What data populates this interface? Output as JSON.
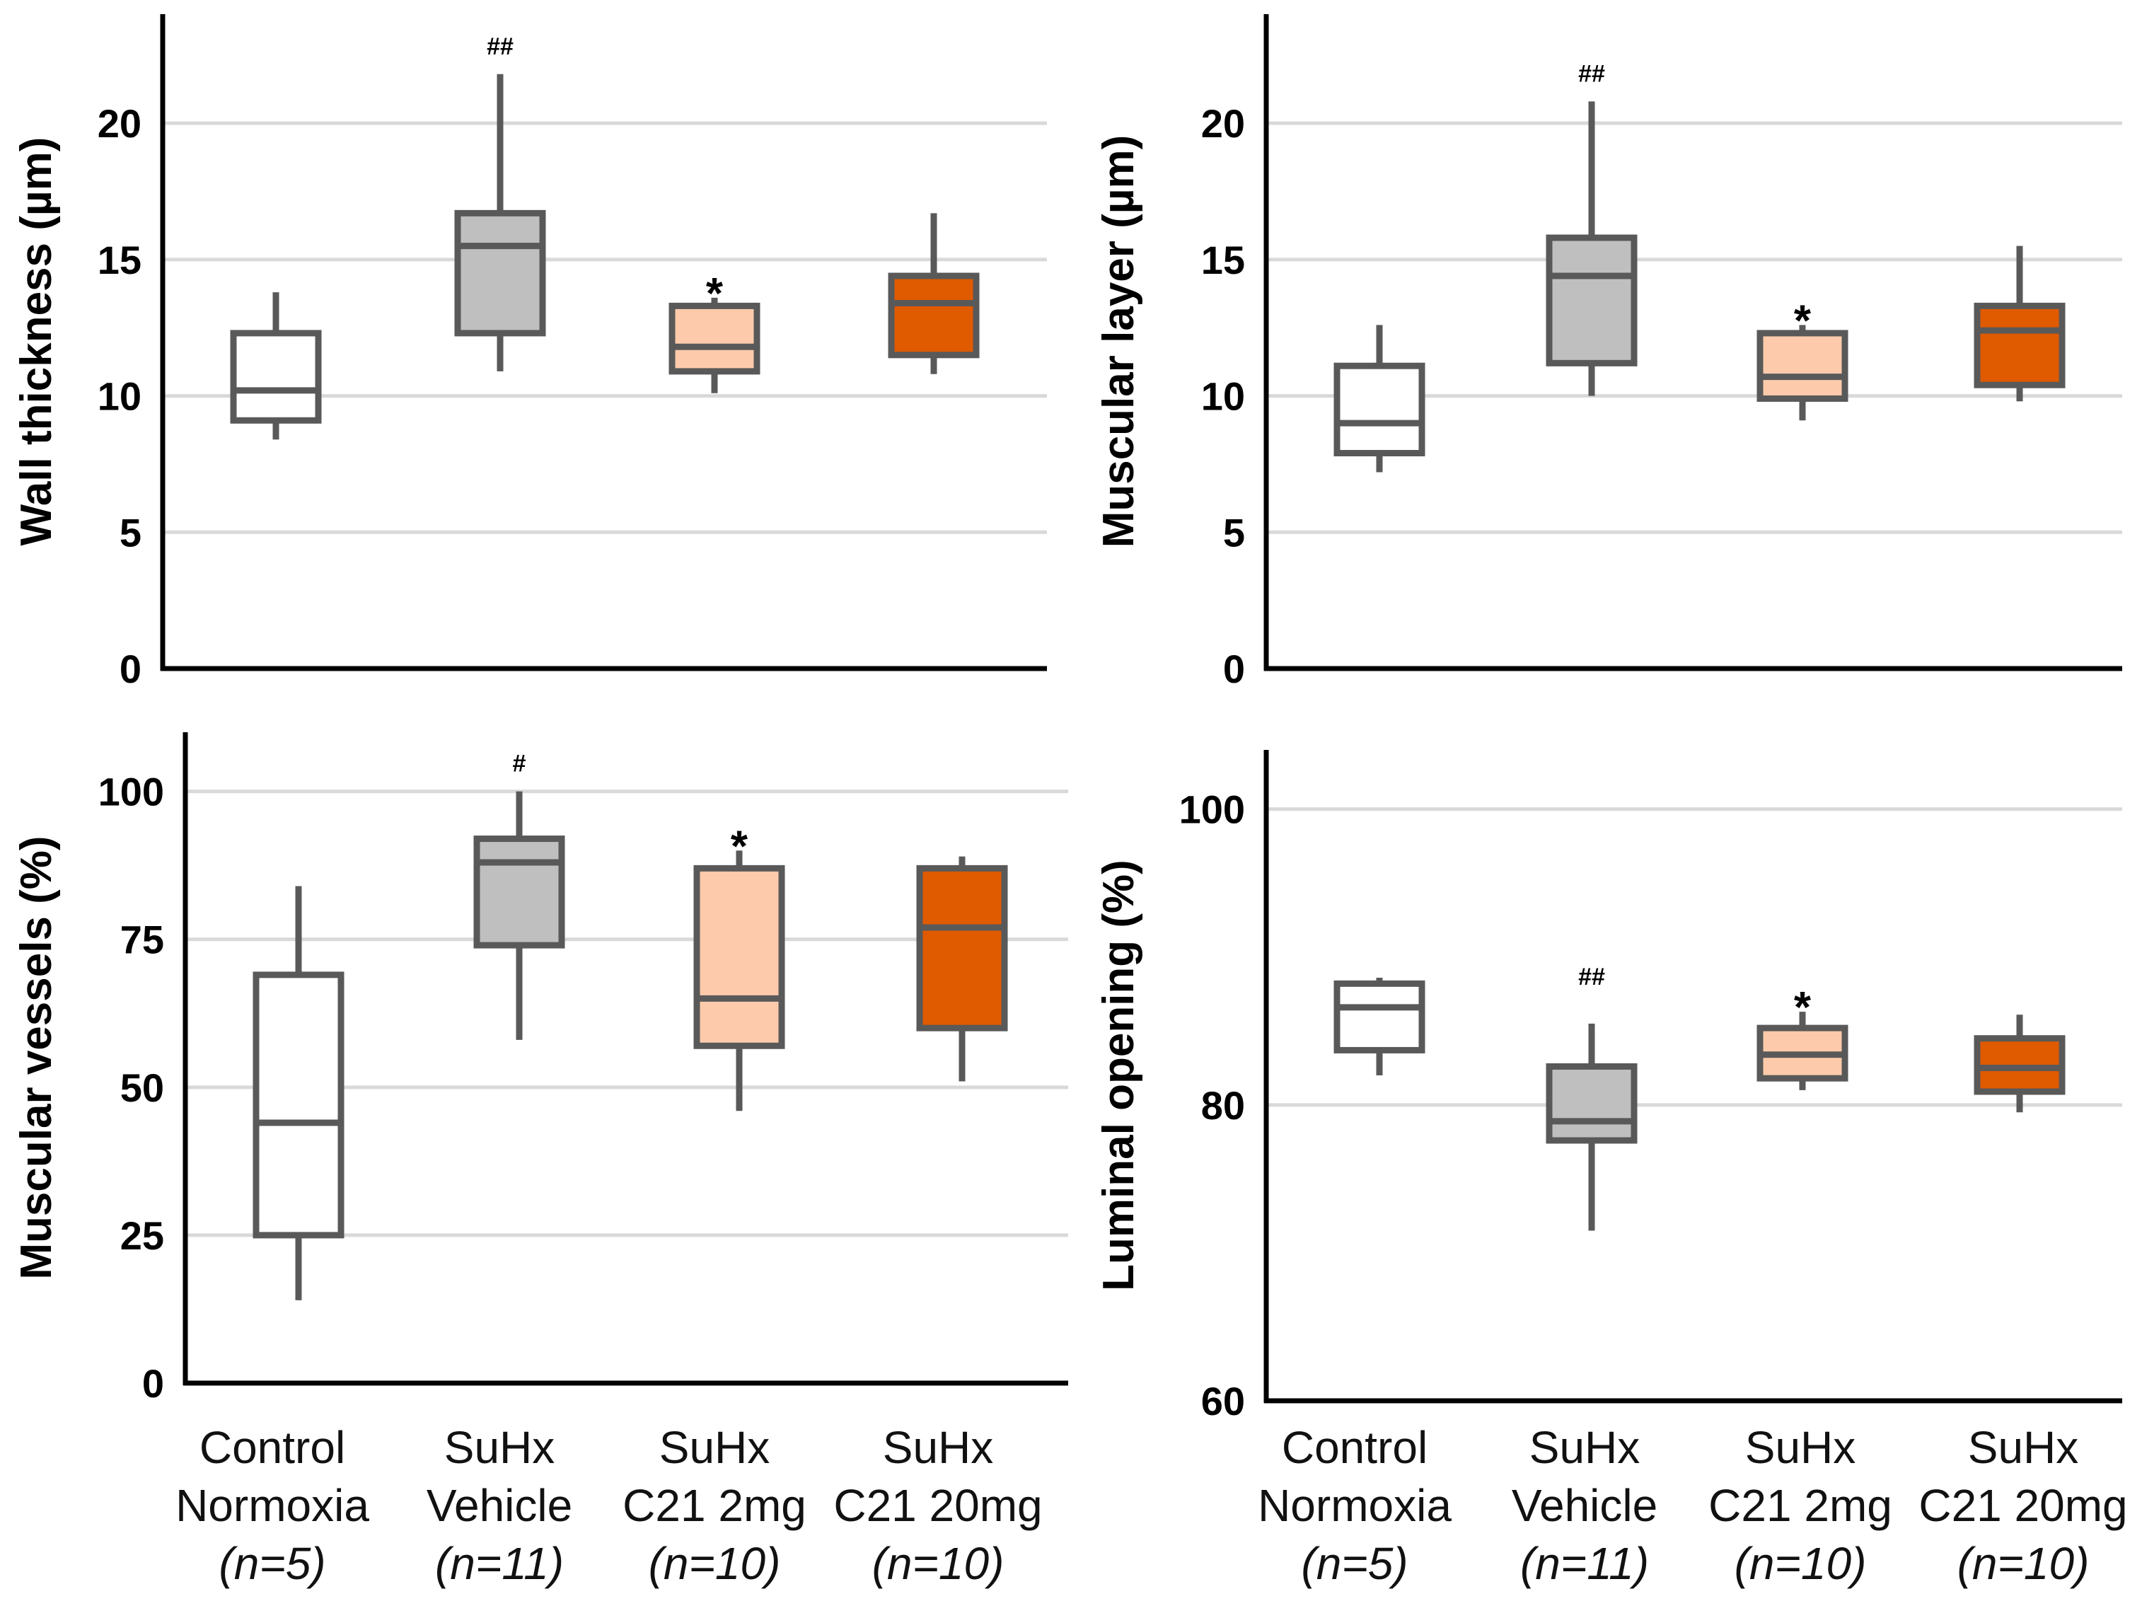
{
  "colors": {
    "stroke": "#595959",
    "grid": "#d9d9d9",
    "axis": "#000000",
    "control": "#ffffff",
    "vehicle": "#bfbfbf",
    "c21_2mg": "#fdcbab",
    "c21_20mg": "#e05a00"
  },
  "categories": [
    {
      "line1": "Control",
      "line2": "Normoxia",
      "n": "(n=5)"
    },
    {
      "line1": "SuHx",
      "line2": "Vehicle",
      "n": "(n=11)"
    },
    {
      "line1": "SuHx",
      "line2": "C21 2mg",
      "n": "(n=10)"
    },
    {
      "line1": "SuHx",
      "line2": "C21 20mg",
      "n": "(n=10)"
    }
  ],
  "chart_data": [
    {
      "type": "boxplot",
      "ylabel": "Wall thickness (µm)",
      "ylim": [
        0,
        24
      ],
      "yticks": [
        0,
        5,
        10,
        15,
        20
      ],
      "boxes": [
        {
          "min": 8.4,
          "q1": 9.1,
          "median": 10.2,
          "q3": 12.3,
          "max": 13.8,
          "sig": ""
        },
        {
          "min": 10.9,
          "q1": 12.3,
          "median": 15.5,
          "q3": 16.7,
          "max": 21.8,
          "sig": "##"
        },
        {
          "min": 10.1,
          "q1": 10.9,
          "median": 11.8,
          "q3": 13.3,
          "max": 13.6,
          "sig": "*"
        },
        {
          "min": 10.8,
          "q1": 11.5,
          "median": 13.4,
          "q3": 14.4,
          "max": 16.7,
          "sig": ""
        }
      ]
    },
    {
      "type": "boxplot",
      "ylabel": "Muscular layer (µm)",
      "ylim": [
        0,
        24
      ],
      "yticks": [
        0,
        5,
        10,
        15,
        20
      ],
      "boxes": [
        {
          "min": 7.2,
          "q1": 7.9,
          "median": 9.0,
          "q3": 11.1,
          "max": 12.6,
          "sig": ""
        },
        {
          "min": 10.0,
          "q1": 11.2,
          "median": 14.4,
          "q3": 15.8,
          "max": 20.8,
          "sig": "##"
        },
        {
          "min": 9.1,
          "q1": 9.9,
          "median": 10.7,
          "q3": 12.3,
          "max": 12.6,
          "sig": "*"
        },
        {
          "min": 9.8,
          "q1": 10.4,
          "median": 12.4,
          "q3": 13.3,
          "max": 15.5,
          "sig": ""
        }
      ]
    },
    {
      "type": "boxplot",
      "ylabel": "Muscular vessels (%)",
      "ylim": [
        0,
        110
      ],
      "yticks": [
        0,
        25,
        50,
        75,
        100
      ],
      "boxes": [
        {
          "min": 14,
          "q1": 25,
          "median": 44,
          "q3": 69,
          "max": 84,
          "sig": ""
        },
        {
          "min": 58,
          "q1": 74,
          "median": 88,
          "q3": 92,
          "max": 100,
          "sig": "#"
        },
        {
          "min": 46,
          "q1": 57,
          "median": 65,
          "q3": 87,
          "max": 90,
          "sig": "*"
        },
        {
          "min": 51,
          "q1": 60,
          "median": 77,
          "q3": 87,
          "max": 89,
          "sig": ""
        }
      ]
    },
    {
      "type": "boxplot",
      "ylabel": "Luminal opening (%)",
      "ylim": [
        60,
        104
      ],
      "yticks": [
        60,
        80,
        100
      ],
      "boxes": [
        {
          "min": 82.0,
          "q1": 83.7,
          "median": 86.6,
          "q3": 88.2,
          "max": 88.6,
          "sig": ""
        },
        {
          "min": 71.5,
          "q1": 77.6,
          "median": 78.9,
          "q3": 82.6,
          "max": 85.5,
          "sig": "##"
        },
        {
          "min": 81.0,
          "q1": 81.8,
          "median": 83.4,
          "q3": 85.2,
          "max": 86.3,
          "sig": "*"
        },
        {
          "min": 79.5,
          "q1": 80.9,
          "median": 82.5,
          "q3": 84.5,
          "max": 86.1,
          "sig": ""
        }
      ]
    }
  ]
}
